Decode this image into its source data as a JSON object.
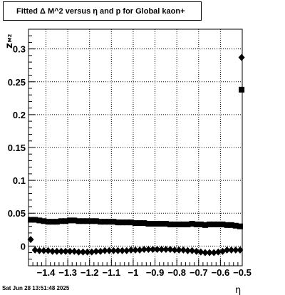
{
  "chart_data": {
    "type": "scatter",
    "title": "Fitted Δ M^2 versus η and p for Global kaon+",
    "xlabel": "η",
    "ylabel": "z",
    "ylabel_sub": "M2",
    "xlim": [
      -1.48,
      -0.5
    ],
    "ylim": [
      -0.03,
      0.33
    ],
    "grid": true,
    "x_ticks": [
      -1.4,
      -1.3,
      -1.2,
      -1.1,
      -1.0,
      -0.9,
      -0.8,
      -0.7,
      -0.6,
      -0.5
    ],
    "x_tick_labels": [
      "−1.4",
      "−1.3",
      "−1.2",
      "−1.1",
      "−1",
      "−0.9",
      "−0.8",
      "−0.7",
      "−0.6",
      "−0.5"
    ],
    "y_ticks": [
      0,
      0.05,
      0.1,
      0.15,
      0.2,
      0.25,
      0.3
    ],
    "y_tick_labels": [
      "0",
      "0.05",
      "0.1",
      "0.15",
      "0.2",
      "0.25",
      "0.3"
    ],
    "series": [
      {
        "marker": "square",
        "x": [
          -1.47,
          -1.45,
          -1.43,
          -1.41,
          -1.39,
          -1.37,
          -1.35,
          -1.33,
          -1.31,
          -1.29,
          -1.27,
          -1.25,
          -1.23,
          -1.21,
          -1.19,
          -1.17,
          -1.15,
          -1.13,
          -1.11,
          -1.09,
          -1.07,
          -1.05,
          -1.03,
          -1.01,
          -0.99,
          -0.97,
          -0.95,
          -0.93,
          -0.91,
          -0.89,
          -0.87,
          -0.85,
          -0.83,
          -0.81,
          -0.79,
          -0.77,
          -0.75,
          -0.73,
          -0.71,
          -0.69,
          -0.67,
          -0.65,
          -0.63,
          -0.61,
          -0.59,
          -0.57,
          -0.55,
          -0.53,
          -0.51
        ],
        "y": [
          0.04,
          0.04,
          0.039,
          0.038,
          0.037,
          0.037,
          0.037,
          0.038,
          0.038,
          0.039,
          0.039,
          0.038,
          0.038,
          0.038,
          0.038,
          0.038,
          0.037,
          0.037,
          0.037,
          0.037,
          0.036,
          0.036,
          0.036,
          0.036,
          0.035,
          0.035,
          0.035,
          0.034,
          0.034,
          0.034,
          0.034,
          0.034,
          0.033,
          0.033,
          0.033,
          0.033,
          0.033,
          0.034,
          0.033,
          0.033,
          0.032,
          0.033,
          0.033,
          0.033,
          0.033,
          0.032,
          0.032,
          0.031,
          0.03
        ]
      },
      {
        "marker": "diamond",
        "x": [
          -1.47,
          -1.45,
          -1.43,
          -1.41,
          -1.39,
          -1.37,
          -1.35,
          -1.33,
          -1.31,
          -1.29,
          -1.27,
          -1.25,
          -1.23,
          -1.21,
          -1.19,
          -1.17,
          -1.15,
          -1.13,
          -1.11,
          -1.09,
          -1.07,
          -1.05,
          -1.03,
          -1.01,
          -0.99,
          -0.97,
          -0.95,
          -0.93,
          -0.91,
          -0.89,
          -0.87,
          -0.85,
          -0.83,
          -0.81,
          -0.79,
          -0.77,
          -0.75,
          -0.73,
          -0.71,
          -0.69,
          -0.67,
          -0.65,
          -0.63,
          -0.61,
          -0.59,
          -0.57,
          -0.55,
          -0.53,
          -0.51
        ],
        "y": [
          0.01,
          -0.006,
          -0.007,
          -0.007,
          -0.007,
          -0.008,
          -0.008,
          -0.008,
          -0.008,
          -0.008,
          -0.008,
          -0.009,
          -0.009,
          -0.009,
          -0.009,
          -0.008,
          -0.008,
          -0.007,
          -0.007,
          -0.007,
          -0.007,
          -0.007,
          -0.007,
          -0.006,
          -0.006,
          -0.006,
          -0.005,
          -0.005,
          -0.005,
          -0.005,
          -0.005,
          -0.005,
          -0.005,
          -0.006,
          -0.006,
          -0.006,
          -0.007,
          -0.007,
          -0.008,
          -0.009,
          -0.01,
          -0.01,
          -0.01,
          -0.009,
          -0.008,
          -0.006,
          -0.006,
          -0.006,
          -0.006
        ]
      }
    ],
    "extra_points": [
      {
        "marker": "diamond",
        "x": -0.503,
        "y": 0.287
      },
      {
        "marker": "square",
        "x": -0.503,
        "y": 0.238
      }
    ]
  },
  "footer": {
    "timestamp": "Sat Jun 28 13:51:48 2025"
  }
}
